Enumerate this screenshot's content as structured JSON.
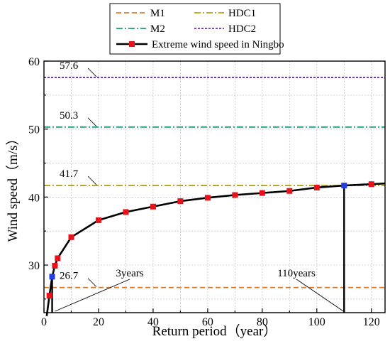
{
  "chart_data": {
    "type": "line",
    "xlabel": "Return period（year）",
    "ylabel": "Wind speed（m/s）",
    "xlim": [
      0,
      125
    ],
    "ylim": [
      23,
      60
    ],
    "xticks": [
      0,
      20,
      40,
      60,
      80,
      100,
      120
    ],
    "yticks": [
      30,
      40,
      50,
      60
    ],
    "grid": true,
    "legend_position": "top",
    "series": [
      {
        "name": "Extreme wind speed in Ningbo",
        "color": "#000000",
        "marker_color": "#e8121b",
        "highlight_color": "#1f3fe0",
        "x": [
          1,
          2,
          3,
          4,
          5,
          10,
          20,
          30,
          40,
          50,
          60,
          70,
          80,
          90,
          100,
          110,
          120
        ],
        "y": [
          22.5,
          25.5,
          28.3,
          29.9,
          31.0,
          34.1,
          36.6,
          37.8,
          38.6,
          39.4,
          39.9,
          40.3,
          40.6,
          40.9,
          41.4,
          41.7,
          41.9
        ],
        "highlight_x": [
          3,
          110
        ],
        "curve_end": [
          125,
          42.0
        ]
      }
    ],
    "reference_lines": [
      {
        "name": "M1",
        "y": 26.7,
        "label": "26.7",
        "color": "#e07a2b",
        "style": "dashed"
      },
      {
        "name": "M2",
        "y": 50.3,
        "label": "50.3",
        "color": "#1a9a7a",
        "style": "dashdot"
      },
      {
        "name": "HDC1",
        "y": 41.7,
        "label": "41.7",
        "color": "#b5a21a",
        "style": "dashdot"
      },
      {
        "name": "HDC2",
        "y": 57.6,
        "label": "57.6",
        "color": "#6a2aa0",
        "style": "dotted"
      }
    ],
    "verticals": [
      {
        "x": 3,
        "from_y": 23,
        "to_y": 28.3
      },
      {
        "x": 110,
        "from_y": 23,
        "to_y": 41.7
      }
    ],
    "annotations": [
      {
        "text": "3years",
        "target_x": 3,
        "target_y": 23
      },
      {
        "text": "110years",
        "target_x": 110,
        "target_y": 23
      }
    ]
  }
}
